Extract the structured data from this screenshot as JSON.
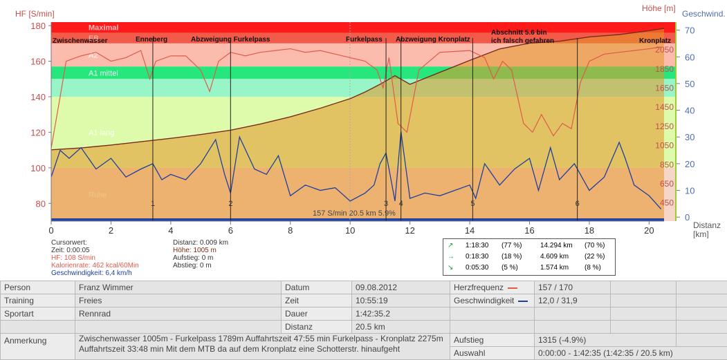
{
  "axes": {
    "hr_label": "HF [S/min]",
    "alt_label": "Höhe [m]",
    "speed_label": "Geschwind.",
    "dist_label": "Distanz",
    "dist_unit": "[km]",
    "hr_ticks": [
      "180",
      "160",
      "140",
      "120",
      "100",
      "80"
    ],
    "alt_ticks": [
      "2050",
      "1850",
      "1650",
      "1450",
      "1250",
      "1050",
      "850",
      "650",
      "450"
    ],
    "speed_ticks": [
      "70",
      "60",
      "50",
      "40",
      "30",
      "20",
      "10",
      "0"
    ],
    "x_ticks": [
      "0",
      "2",
      "4",
      "6",
      "8",
      "10",
      "12",
      "14",
      "16",
      "18",
      "20"
    ]
  },
  "zones": [
    {
      "name": "Maximal",
      "color": "#ff1a1a"
    },
    {
      "name": "EB",
      "color": "#f25a4a"
    },
    {
      "name": "A2",
      "color": "#fbbcae"
    },
    {
      "name": "A1 mittel",
      "color": "#26e67c"
    },
    {
      "name": "",
      "color": "#98f5c8"
    },
    {
      "name": "A1 lang",
      "color": "#ddfbaa"
    },
    {
      "name": "Ruhe",
      "color": "#f5d6c8"
    }
  ],
  "markers": [
    {
      "label": "Zwischenwasser",
      "num": ""
    },
    {
      "label": "Enneberg",
      "num": "1"
    },
    {
      "label": "Abzweigung Furkelpass",
      "num": "2"
    },
    {
      "label": "Furkelpass",
      "num": "3"
    },
    {
      "label": "Abzweigung Kronplatz",
      "num": "4"
    },
    {
      "label": "",
      "num": "5"
    },
    {
      "label": "Abschnitt 5.6 bin",
      "num": ""
    },
    {
      "label": "ich falsch gefahren",
      "num": "6"
    },
    {
      "label": "Kronplatz",
      "num": ""
    }
  ],
  "overlay_text": "157 S/min 20.5 km 5.9%",
  "cursor": {
    "title": "Cursorwert:",
    "time": "Zeit: 0:00:05",
    "hr": "HF: 108 S/min",
    "calories": "Kalorienrate: 462 kcal/60Min",
    "speed": "Geschwindigkeit: 6,4 km/h",
    "distance": "Distanz: 0.009 km",
    "altitude": "Höhe: 1005 m",
    "ascent": "Aufstieg: 0 m",
    "descent": "Abstieg: 0 m"
  },
  "zone_summary": [
    {
      "icon": "↗",
      "time": "1:18:30",
      "pct": "(77 %)",
      "dist": "14.294 km",
      "dpct": "(70 %)"
    },
    {
      "icon": "→",
      "time": "0:18:30",
      "pct": "(18 %)",
      "dist": "4.609 km",
      "dpct": "(22 %)"
    },
    {
      "icon": "↘",
      "time": "0:05:30",
      "pct": "(5 %)",
      "dist": "1.574 km",
      "dpct": "(8 %)"
    }
  ],
  "info": {
    "person_label": "Person",
    "person": "Franz Wimmer",
    "datum_label": "Datum",
    "datum": "09.08.2012",
    "training_label": "Training",
    "training": "Freies",
    "zeit_label": "Zeit",
    "zeit": "10:55:19",
    "sportart_label": "Sportart",
    "sportart": "Rennrad",
    "dauer_label": "Dauer",
    "dauer": "1:42:35.2",
    "distanz_label": "Distanz",
    "distanz": "20.5 km",
    "anmerkung_label": "Anmerkung",
    "anmerkung": "Zwischenwasser 1005m - Furkelpass 1789m Auffahrtszeit 47:55 min Furkelpass - Kronplatz 2275m Auffahrtszeit 33:48 min Mit dem MTB da auf dem Kronplatz eine Schotterstr. hinaufgeht",
    "hf_label": "Herzfrequenz",
    "hf": "157 / 170",
    "speed_label": "Geschwindigkeit",
    "speed": "12,0 / 31,9",
    "aufstieg_label": "Aufstieg",
    "aufstieg": "1315 (-4.9%)",
    "auswahl_label": "Auswahl",
    "auswahl": "0:00:00 - 1:42:35 (1:42:35 / 20.5 km)"
  },
  "colors": {
    "hr_line": "#e05a4a",
    "speed_line": "#1f3fa0",
    "alt_line": "#7a2a1a",
    "alt_fill": "rgba(230,150,40,0.55)"
  },
  "chart_data": {
    "type": "line",
    "x_unit": "km",
    "xlim": [
      0,
      20.5
    ],
    "series": [
      {
        "name": "HF",
        "axis": "left",
        "ylim": [
          70,
          182
        ],
        "x": [
          0,
          0.3,
          0.5,
          1,
          1.5,
          2,
          2.5,
          3,
          3.3,
          3.5,
          4,
          4.5,
          5,
          5.3,
          5.6,
          6,
          6.5,
          7,
          7.5,
          8,
          8.5,
          9,
          9.5,
          10,
          10.5,
          10.9,
          11.1,
          11.3,
          11.6,
          11.9,
          12.3,
          13,
          14,
          14.5,
          14.8,
          15.1,
          15.4,
          15.8,
          16.1,
          16.4,
          16.8,
          17.1,
          17.4,
          17.7,
          18,
          18.5,
          19,
          19.5,
          20,
          20.4
        ],
        "y": [
          111,
          140,
          160,
          163,
          165,
          160,
          162,
          166,
          150,
          160,
          163,
          163,
          155,
          143,
          160,
          165,
          163,
          165,
          166,
          167,
          165,
          166,
          164,
          162,
          160,
          155,
          145,
          162,
          125,
          120,
          155,
          165,
          166,
          162,
          150,
          160,
          155,
          125,
          120,
          130,
          118,
          125,
          122,
          148,
          160,
          164,
          165,
          166,
          167,
          168
        ]
      },
      {
        "name": "Höhe",
        "axis": "right",
        "ylim": [
          260,
          2340
        ],
        "x": [
          0,
          1,
          2,
          3,
          4,
          5,
          6,
          7,
          8,
          9,
          10,
          10.5,
          11,
          11.5,
          12,
          13,
          14,
          15,
          16,
          17,
          18,
          19,
          20,
          20.5
        ],
        "y": [
          1005,
          1025,
          1055,
          1090,
          1125,
          1165,
          1210,
          1275,
          1350,
          1440,
          1540,
          1610,
          1690,
          1780,
          1690,
          1815,
          1940,
          2060,
          2120,
          2140,
          2185,
          2210,
          2250,
          2275
        ]
      },
      {
        "name": "Geschwind.",
        "axis": "right2",
        "ylim": [
          -1.5,
          73
        ],
        "x": [
          0,
          0.3,
          0.6,
          1,
          1.5,
          2,
          2.5,
          3,
          3.4,
          3.7,
          4,
          4.5,
          5,
          5.5,
          5.8,
          6,
          6.3,
          6.8,
          7.2,
          7.6,
          8,
          8.5,
          9,
          9.5,
          10,
          10.5,
          10.8,
          11,
          11.2,
          11.5,
          11.7,
          12,
          12.5,
          13,
          13.5,
          14,
          14.2,
          14.5,
          15,
          15.5,
          16,
          16.3,
          16.7,
          17,
          17.5,
          18,
          18.5,
          19,
          19.2,
          19.5,
          20,
          20.4
        ],
        "y": [
          15,
          25,
          22,
          26,
          18,
          22,
          15,
          18,
          20,
          14,
          16,
          14,
          20,
          29,
          16,
          9,
          30,
          18,
          16,
          23,
          8,
          12,
          10,
          11,
          6,
          9,
          12,
          20,
          24,
          6,
          32,
          7,
          9,
          8,
          10,
          12,
          7,
          20,
          12,
          18,
          22,
          10,
          26,
          14,
          20,
          10,
          15,
          28,
          22,
          12,
          8,
          3
        ]
      }
    ]
  }
}
